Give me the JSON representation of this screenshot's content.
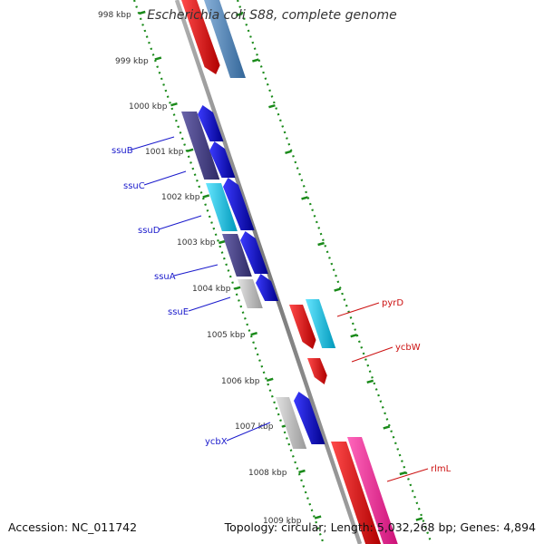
{
  "title": "Escherichia coli S88, complete genome",
  "footer": {
    "accession": "Accession: NC_011742",
    "stats": "Topology: circular; Length: 5,032,268 bp; Genes: 4,894"
  },
  "ruler_labels": [
    "998 kbp",
    "999 kbp",
    "1000 kbp",
    "1001 kbp",
    "1002 kbp",
    "1003 kbp",
    "1004 kbp",
    "1005 kbp",
    "1006 kbp",
    "1007 kbp",
    "1008 kbp",
    "1009 kbp"
  ],
  "gene_labels": [
    {
      "name": "ssuB",
      "strand": "reverse"
    },
    {
      "name": "ssuC",
      "strand": "reverse"
    },
    {
      "name": "ssuD",
      "strand": "reverse"
    },
    {
      "name": "ssuA",
      "strand": "reverse"
    },
    {
      "name": "ssuE",
      "strand": "reverse"
    },
    {
      "name": "ycbX",
      "strand": "reverse"
    },
    {
      "name": "pyrD",
      "strand": "forward"
    },
    {
      "name": "ycbW",
      "strand": "forward"
    },
    {
      "name": "rlmL",
      "strand": "forward"
    }
  ],
  "colors": {
    "backbone": "#888888",
    "ruler_dots": "#1a8a1a",
    "reverse_label": "#1a1acc",
    "forward_label": "#cc1111",
    "cds_blue": "#0a0ae6",
    "cds_red": "#ee1111",
    "cds_cyan": "#22ccee",
    "cds_grey": "#b8b8b8",
    "cds_navy": "#4a4488",
    "cds_pink": "#ee3399",
    "cds_steel": "#5588bb"
  }
}
